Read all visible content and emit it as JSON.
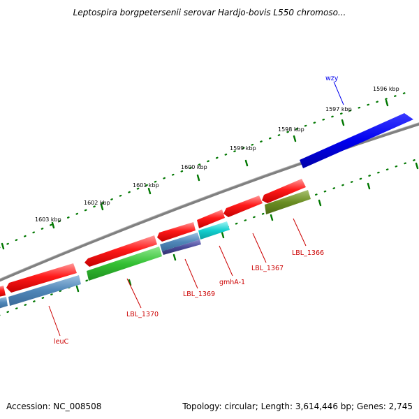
{
  "title": "Leptospira borgpetersenii serovar Hardjo-bovis L550 chromoso...",
  "footer": {
    "accession": "Accession: NC_008508",
    "topology": "Topology: circular; Length: 3,614,446 bp; Genes: 2,745"
  },
  "ruler_labels": [
    "1596 kbp",
    "1597 kbp",
    "1598 kbp",
    "1599 kbp",
    "1600 kbp",
    "1601 kbp",
    "1602 kbp",
    "1603 kbp"
  ],
  "genes": [
    {
      "id": "wzy",
      "label": "wzy",
      "color": "#0000cc",
      "track": "outer"
    },
    {
      "id": "lbl1366",
      "label": "LBL_1366",
      "color": "#cc0000",
      "track": "inner"
    },
    {
      "id": "lbl1367",
      "label": "LBL_1367",
      "color": "#cc0000",
      "track": "inner"
    },
    {
      "id": "gmha",
      "label": "gmhA-1",
      "color": "#cc0000",
      "track": "inner"
    },
    {
      "id": "lbl1369",
      "label": "LBL_1369",
      "color": "#cc0000",
      "track": "inner"
    },
    {
      "id": "lbl1370",
      "label": "LBL_1370",
      "color": "#cc0000",
      "track": "inner"
    },
    {
      "id": "leuc",
      "label": "leuC",
      "color": "#cc0000",
      "track": "inner"
    }
  ],
  "colors": {
    "forward_strand": "#ee0000",
    "reverse_strand_blue": "#0000ee",
    "cog_green": "#33bb33",
    "cog_steelblue": "#4a7fb0",
    "cog_cyan": "#11cccc",
    "cog_olive": "#6b8e23",
    "cog_slate": "#4a4a8a",
    "backbone": "#808080",
    "ruler_dots": "#007700"
  }
}
